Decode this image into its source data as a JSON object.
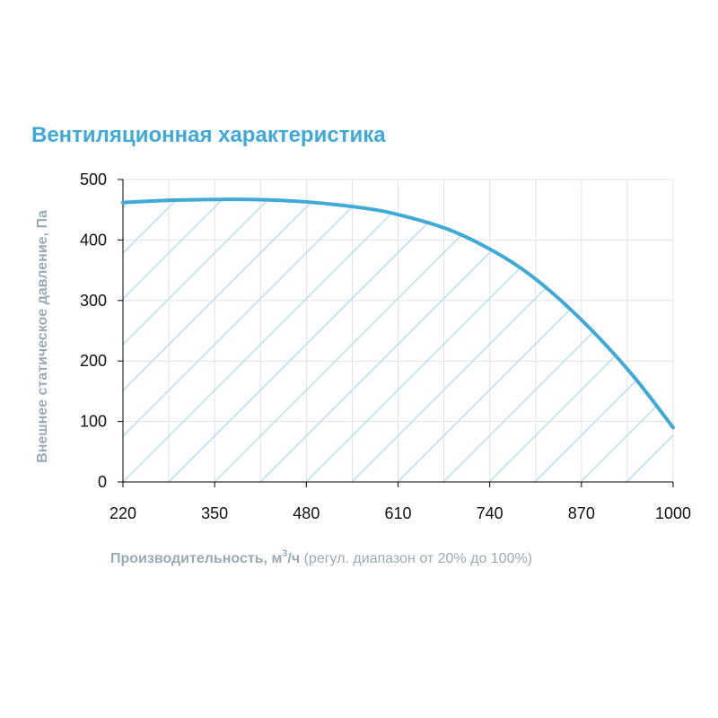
{
  "chart_data": {
    "type": "line",
    "title": "Вентиляционная характеристика",
    "ylabel": "Внешнее статическое давление, Па",
    "xlabel": {
      "bold": "Производительность, м",
      "sup": "3",
      "bold_suffix": "/ч",
      "regular": " (регул. диапазон от 20% до 100%)"
    },
    "x_ticks": [
      "220",
      "350",
      "480",
      "610",
      "740",
      "870",
      "1000"
    ],
    "y_ticks": [
      "0",
      "100",
      "200",
      "300",
      "400",
      "500"
    ],
    "xlim": [
      220,
      1000
    ],
    "ylim": [
      0,
      500
    ],
    "grid": true,
    "operating_area": "hatched",
    "series": [
      {
        "x": [
          220,
          300,
          400,
          480,
          560,
          610,
          680,
          740,
          800,
          870,
          940,
          1000
        ],
        "y": [
          462,
          466,
          467,
          463,
          453,
          442,
          418,
          385,
          340,
          268,
          180,
          90
        ]
      }
    ],
    "colors": {
      "title": "#3fa9d8",
      "line": "#3fa9d8",
      "hatch": "#bfdff0",
      "grid": "#e3e3e3",
      "axis_title": "#9aaab4",
      "axis_line": "#000000"
    }
  }
}
